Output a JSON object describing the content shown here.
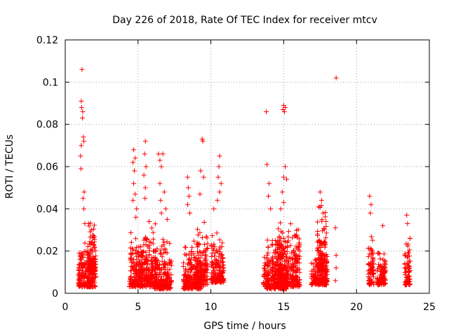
{
  "chart_data": {
    "type": "scatter",
    "title": "Day 226 of 2018, Rate Of TEC Index for receiver mtcv",
    "xlabel": "GPS time / hours",
    "ylabel": "ROTI / TECUs",
    "xlim": [
      0,
      25
    ],
    "ylim": [
      0,
      0.12
    ],
    "xticks": [
      0,
      5,
      10,
      15,
      20,
      25
    ],
    "yticks": [
      0,
      0.02,
      0.04,
      0.06,
      0.08,
      0.1,
      0.12
    ],
    "ytick_labels": [
      "0",
      "0.02",
      "0.04",
      "0.06",
      "0.08",
      "0.1",
      "0.12"
    ],
    "grid": true,
    "marker": "plus",
    "color": "#ff0000",
    "clusters": [
      {
        "x": [
          0.9,
          2.1
        ],
        "ymin": 0.003,
        "ymax": 0.026
      },
      {
        "x": [
          1.5,
          2.1
        ],
        "ymin": 0.01,
        "ymax": 0.035
      },
      {
        "x": [
          4.4,
          5.6
        ],
        "ymin": 0.003,
        "ymax": 0.03
      },
      {
        "x": [
          5.5,
          6.2
        ],
        "ymin": 0.003,
        "ymax": 0.04
      },
      {
        "x": [
          6.1,
          7.3
        ],
        "ymin": 0.002,
        "ymax": 0.027
      },
      {
        "x": [
          8.1,
          9.4
        ],
        "ymin": 0.002,
        "ymax": 0.026
      },
      {
        "x": [
          9.0,
          9.8
        ],
        "ymin": 0.004,
        "ymax": 0.035
      },
      {
        "x": [
          10.0,
          10.9
        ],
        "ymin": 0.005,
        "ymax": 0.03
      },
      {
        "x": [
          13.6,
          15.2
        ],
        "ymin": 0.002,
        "ymax": 0.028
      },
      {
        "x": [
          14.4,
          16.1
        ],
        "ymin": 0.003,
        "ymax": 0.036
      },
      {
        "x": [
          16.9,
          18.0
        ],
        "ymin": 0.004,
        "ymax": 0.02
      },
      {
        "x": [
          17.3,
          18.0
        ],
        "ymin": 0.01,
        "ymax": 0.045
      },
      {
        "x": [
          20.8,
          21.2
        ],
        "ymin": 0.004,
        "ymax": 0.03
      },
      {
        "x": [
          21.4,
          22.0
        ],
        "ymin": 0.004,
        "ymax": 0.022
      },
      {
        "x": [
          23.3,
          23.7
        ],
        "ymin": 0.004,
        "ymax": 0.035
      }
    ],
    "points": [
      [
        1.15,
        0.106
      ],
      [
        1.1,
        0.091
      ],
      [
        1.12,
        0.088
      ],
      [
        1.2,
        0.086
      ],
      [
        1.18,
        0.083
      ],
      [
        1.25,
        0.074
      ],
      [
        1.28,
        0.072
      ],
      [
        1.1,
        0.07
      ],
      [
        1.05,
        0.065
      ],
      [
        1.08,
        0.059
      ],
      [
        1.3,
        0.048
      ],
      [
        1.22,
        0.045
      ],
      [
        1.28,
        0.04
      ],
      [
        1.35,
        0.033
      ],
      [
        1.6,
        0.033
      ],
      [
        4.7,
        0.068
      ],
      [
        4.8,
        0.064
      ],
      [
        4.65,
        0.062
      ],
      [
        4.75,
        0.058
      ],
      [
        4.7,
        0.052
      ],
      [
        4.8,
        0.047
      ],
      [
        4.65,
        0.044
      ],
      [
        4.9,
        0.04
      ],
      [
        4.85,
        0.036
      ],
      [
        5.5,
        0.072
      ],
      [
        5.45,
        0.066
      ],
      [
        5.55,
        0.06
      ],
      [
        5.4,
        0.056
      ],
      [
        5.5,
        0.05
      ],
      [
        5.48,
        0.045
      ],
      [
        6.4,
        0.066
      ],
      [
        6.7,
        0.066
      ],
      [
        6.5,
        0.063
      ],
      [
        6.6,
        0.06
      ],
      [
        6.5,
        0.052
      ],
      [
        6.8,
        0.048
      ],
      [
        6.55,
        0.044
      ],
      [
        6.9,
        0.04
      ],
      [
        6.6,
        0.038
      ],
      [
        7.0,
        0.035
      ],
      [
        8.4,
        0.055
      ],
      [
        8.45,
        0.05
      ],
      [
        8.5,
        0.046
      ],
      [
        8.4,
        0.042
      ],
      [
        8.55,
        0.038
      ],
      [
        9.4,
        0.073
      ],
      [
        9.45,
        0.072
      ],
      [
        9.3,
        0.058
      ],
      [
        9.5,
        0.055
      ],
      [
        9.25,
        0.047
      ],
      [
        10.6,
        0.065
      ],
      [
        10.55,
        0.06
      ],
      [
        10.5,
        0.055
      ],
      [
        10.7,
        0.052
      ],
      [
        10.6,
        0.048
      ],
      [
        10.45,
        0.044
      ],
      [
        10.2,
        0.04
      ],
      [
        13.8,
        0.086
      ],
      [
        13.85,
        0.061
      ],
      [
        14.0,
        0.052
      ],
      [
        13.95,
        0.046
      ],
      [
        14.1,
        0.04
      ],
      [
        15.0,
        0.089
      ],
      [
        14.95,
        0.087
      ],
      [
        15.05,
        0.086
      ],
      [
        15.1,
        0.088
      ],
      [
        15.1,
        0.06
      ],
      [
        15.0,
        0.055
      ],
      [
        15.2,
        0.054
      ],
      [
        14.9,
        0.048
      ],
      [
        15.0,
        0.043
      ],
      [
        14.8,
        0.04
      ],
      [
        17.5,
        0.048
      ],
      [
        17.6,
        0.044
      ],
      [
        17.4,
        0.041
      ],
      [
        17.7,
        0.038
      ],
      [
        18.6,
        0.102
      ],
      [
        18.55,
        0.031
      ],
      [
        18.6,
        0.018
      ],
      [
        18.6,
        0.012
      ],
      [
        18.55,
        0.006
      ],
      [
        20.9,
        0.046
      ],
      [
        21.0,
        0.042
      ],
      [
        20.95,
        0.038
      ],
      [
        21.8,
        0.032
      ],
      [
        23.45,
        0.037
      ],
      [
        23.5,
        0.033
      ]
    ]
  }
}
